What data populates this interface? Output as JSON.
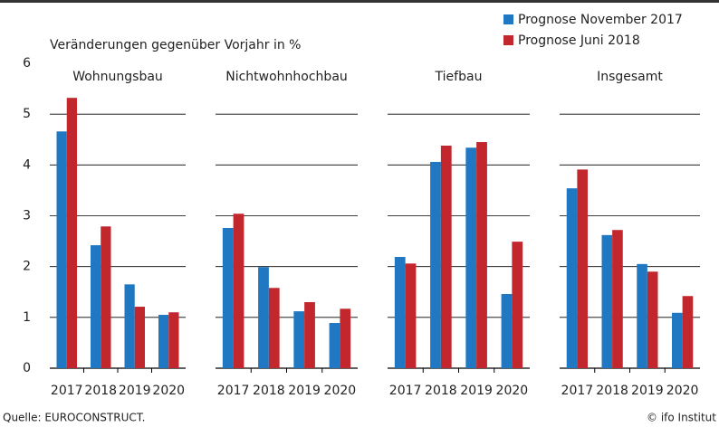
{
  "chart_data": {
    "type": "bar",
    "ylabel": "Veränderungen gegenüber Vorjahr in %",
    "source": "Quelle: EUROCONSTRUCT.",
    "copyright": "© ifo Institut",
    "ylim": [
      0,
      6
    ],
    "yticks": [
      0,
      1,
      2,
      3,
      4,
      5,
      6
    ],
    "grid": true,
    "legend": "top-right",
    "panels": [
      {
        "title": "Wohnungsbau",
        "categories": [
          "2017",
          "2018",
          "2019",
          "2020"
        ]
      },
      {
        "title": "Nichtwohnhochbau",
        "categories": [
          "2017",
          "2018",
          "2019",
          "2020"
        ]
      },
      {
        "title": "Tiefbau",
        "categories": [
          "2017",
          "2018",
          "2019",
          "2020"
        ]
      },
      {
        "title": "Insgesamt",
        "categories": [
          "2017",
          "2018",
          "2019",
          "2020"
        ]
      }
    ],
    "series": [
      {
        "name": "Prognose November 2017",
        "color": "#1f78c1",
        "values": [
          [
            4.66,
            2.42,
            1.65,
            1.05
          ],
          [
            2.76,
            1.99,
            1.12,
            0.89
          ],
          [
            2.19,
            4.06,
            4.34,
            1.46
          ],
          [
            3.54,
            2.62,
            2.05,
            1.09
          ]
        ]
      },
      {
        "name": "Prognose Juni 2018",
        "color": "#c1272d",
        "values": [
          [
            5.32,
            2.79,
            1.21,
            1.1
          ],
          [
            3.04,
            1.58,
            1.3,
            1.17
          ],
          [
            2.06,
            4.38,
            4.45,
            2.49
          ],
          [
            3.91,
            2.72,
            1.9,
            1.42
          ]
        ]
      }
    ]
  }
}
